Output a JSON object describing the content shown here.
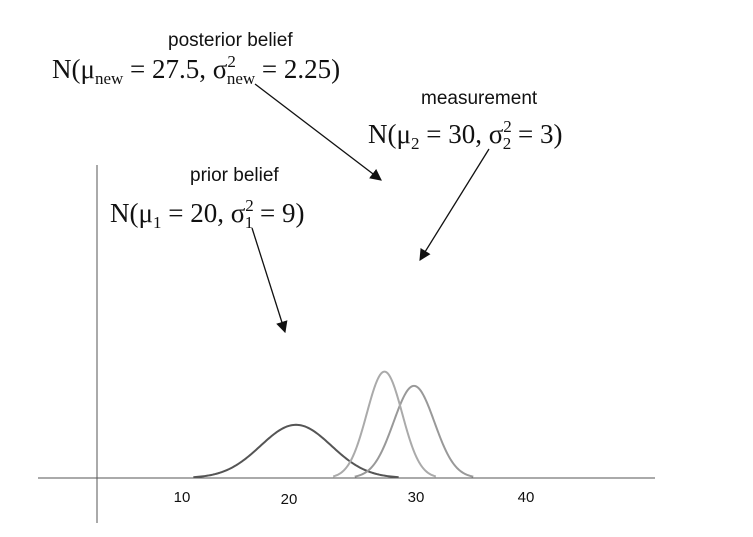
{
  "chart_data": {
    "type": "line",
    "title": "",
    "xlabel": "",
    "ylabel": "",
    "x_ticks": [
      "10",
      "20",
      "30",
      "40"
    ],
    "series": [
      {
        "key": "prior",
        "name": "prior belief",
        "formula": "N(μ₁ = 20, σ₁² = 9)",
        "mean": 20,
        "variance": 9,
        "color": "#555555"
      },
      {
        "key": "measurement",
        "name": "measurement",
        "formula": "N(μ₂ = 30, σ₂² = 3)",
        "mean": 30,
        "variance": 3,
        "color": "#999999"
      },
      {
        "key": "posterior",
        "name": "posterior belief",
        "formula": "N(μnew = 27.5, σ²new = 2.25)",
        "mean": 27.5,
        "variance": 2.25,
        "color": "#aaaaaa"
      }
    ],
    "grid": false,
    "legend": "none"
  }
}
